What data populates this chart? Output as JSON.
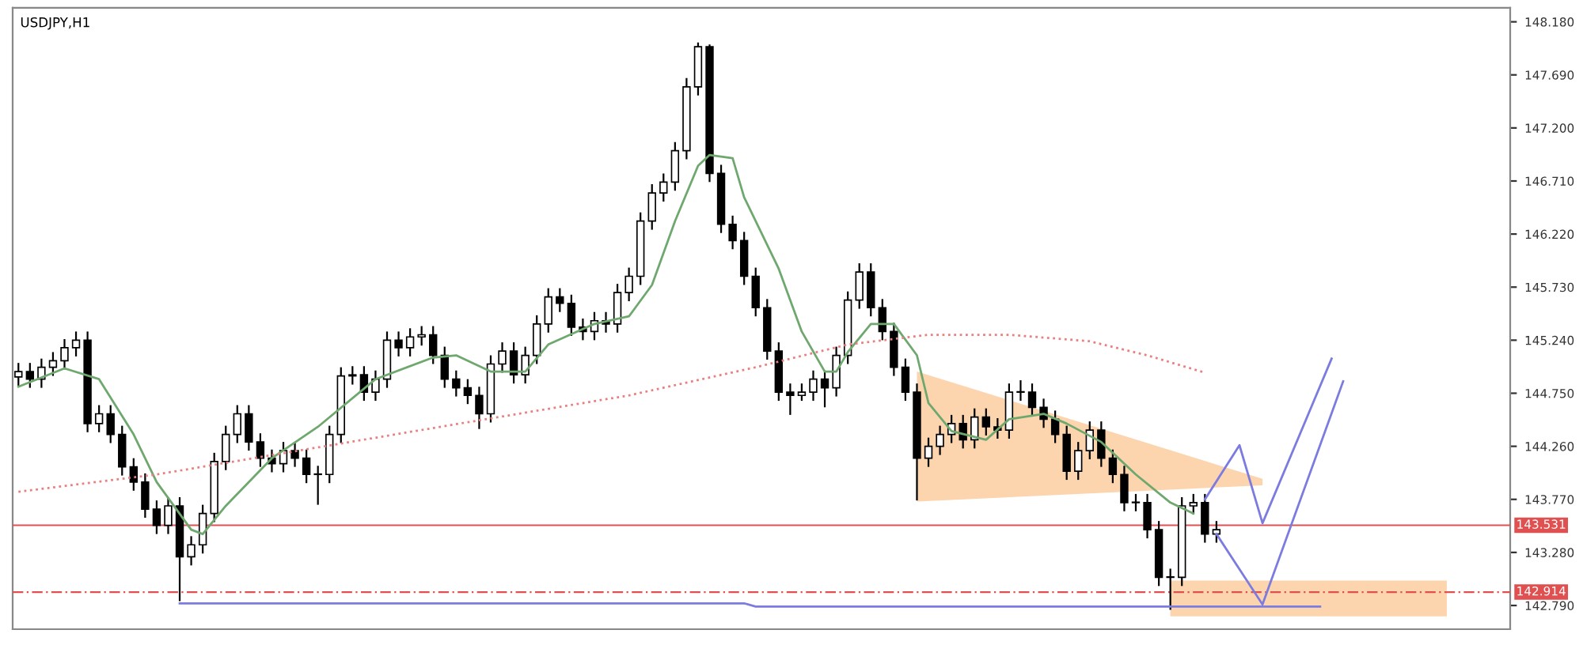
{
  "chart_data": {
    "type": "candlestick",
    "title": "USDJPY,H1",
    "categories": [
      null,
      null,
      null,
      null,
      null,
      null,
      null,
      null,
      null,
      null,
      null,
      null,
      null,
      null,
      null,
      null,
      null,
      null,
      null,
      null,
      null,
      null,
      null,
      null,
      null,
      null,
      null,
      null,
      null,
      null,
      null,
      null,
      null,
      null,
      null,
      null,
      null,
      null,
      null,
      null,
      null,
      null,
      null,
      null,
      null,
      null,
      null,
      null,
      null,
      null,
      null,
      null,
      null,
      null,
      null,
      null,
      null,
      null,
      null,
      null,
      null,
      null,
      null,
      null,
      null,
      null,
      null,
      null,
      null,
      null,
      null,
      null,
      null,
      null,
      null,
      null,
      null,
      null,
      null,
      null,
      null,
      null,
      null,
      null,
      null,
      null,
      null,
      null,
      null,
      null,
      null,
      null,
      null,
      null,
      null,
      null,
      null,
      null,
      null,
      null,
      null,
      null,
      null,
      null,
      null,
      null,
      null,
      null,
      null,
      null,
      null,
      null,
      null,
      null,
      null,
      null,
      null,
      null,
      null,
      null,
      null,
      null,
      null,
      null,
      null,
      null,
      null,
      null,
      null,
      null
    ],
    "ohlc": [
      [
        144.9,
        145.03,
        144.82,
        144.95
      ],
      [
        144.95,
        145.03,
        144.8,
        144.88
      ],
      [
        144.88,
        145.07,
        144.8,
        144.99
      ],
      [
        144.99,
        145.13,
        144.91,
        145.05
      ],
      [
        145.05,
        145.25,
        144.97,
        145.17
      ],
      [
        145.17,
        145.32,
        145.09,
        145.24
      ],
      [
        145.24,
        145.32,
        144.39,
        144.47
      ],
      [
        144.47,
        144.64,
        144.39,
        144.56
      ],
      [
        144.56,
        144.64,
        144.29,
        144.37
      ],
      [
        144.37,
        144.45,
        143.99,
        144.07
      ],
      [
        144.07,
        144.15,
        143.85,
        143.93
      ],
      [
        143.93,
        144.01,
        143.6,
        143.68
      ],
      [
        143.68,
        143.76,
        143.45,
        143.53
      ],
      [
        143.53,
        143.79,
        143.45,
        143.71
      ],
      [
        143.71,
        143.79,
        142.83,
        143.24
      ],
      [
        143.24,
        143.43,
        143.16,
        143.35
      ],
      [
        143.35,
        143.72,
        143.27,
        143.64
      ],
      [
        143.64,
        144.2,
        143.56,
        144.12
      ],
      [
        144.12,
        144.45,
        144.04,
        144.37
      ],
      [
        144.37,
        144.64,
        144.29,
        144.56
      ],
      [
        144.56,
        144.64,
        144.22,
        144.3
      ],
      [
        144.3,
        144.38,
        144.07,
        144.15
      ],
      [
        144.15,
        144.23,
        144.02,
        144.1
      ],
      [
        144.1,
        144.3,
        144.02,
        144.22
      ],
      [
        144.22,
        144.3,
        144.07,
        144.15
      ],
      [
        144.15,
        144.23,
        143.92,
        144.0
      ],
      [
        144.0,
        144.08,
        143.72,
        144.0
      ],
      [
        144.0,
        144.45,
        143.92,
        144.37
      ],
      [
        144.37,
        144.99,
        144.29,
        144.91
      ],
      [
        144.91,
        145.0,
        144.83,
        144.92
      ],
      [
        144.92,
        145.0,
        144.68,
        144.76
      ],
      [
        144.76,
        144.96,
        144.68,
        144.88
      ],
      [
        144.88,
        145.32,
        144.8,
        145.24
      ],
      [
        145.24,
        145.32,
        145.09,
        145.17
      ],
      [
        145.17,
        145.35,
        145.09,
        145.27
      ],
      [
        145.27,
        145.37,
        145.19,
        145.29
      ],
      [
        145.29,
        145.37,
        145.02,
        145.1
      ],
      [
        145.1,
        145.18,
        144.8,
        144.88
      ],
      [
        144.88,
        144.96,
        144.72,
        144.8
      ],
      [
        144.8,
        144.88,
        144.65,
        144.73
      ],
      [
        144.73,
        144.81,
        144.42,
        144.56
      ],
      [
        144.56,
        145.1,
        144.48,
        145.02
      ],
      [
        145.02,
        145.22,
        144.94,
        145.14
      ],
      [
        145.14,
        145.22,
        144.84,
        144.92
      ],
      [
        144.92,
        145.18,
        144.84,
        145.1
      ],
      [
        145.1,
        145.47,
        145.02,
        145.39
      ],
      [
        145.39,
        145.72,
        145.31,
        145.64
      ],
      [
        145.64,
        145.72,
        145.5,
        145.58
      ],
      [
        145.58,
        145.66,
        145.28,
        145.36
      ],
      [
        145.36,
        145.44,
        145.24,
        145.32
      ],
      [
        145.32,
        145.5,
        145.24,
        145.42
      ],
      [
        145.42,
        145.5,
        145.31,
        145.39
      ],
      [
        145.39,
        145.76,
        145.31,
        145.68
      ],
      [
        145.68,
        145.91,
        145.6,
        145.83
      ],
      [
        145.83,
        146.42,
        145.75,
        146.34
      ],
      [
        146.34,
        146.68,
        146.26,
        146.6
      ],
      [
        146.6,
        146.78,
        146.52,
        146.7
      ],
      [
        146.7,
        147.07,
        146.62,
        146.99
      ],
      [
        146.99,
        147.66,
        146.91,
        147.58
      ],
      [
        147.58,
        147.99,
        147.5,
        147.95
      ],
      [
        147.95,
        147.97,
        146.7,
        146.78
      ],
      [
        146.78,
        146.86,
        146.23,
        146.31
      ],
      [
        146.31,
        146.39,
        146.08,
        146.16
      ],
      [
        146.16,
        146.24,
        145.75,
        145.83
      ],
      [
        145.83,
        145.91,
        145.46,
        145.54
      ],
      [
        145.54,
        145.62,
        145.06,
        145.14
      ],
      [
        145.14,
        145.22,
        144.68,
        144.76
      ],
      [
        144.76,
        144.84,
        144.55,
        144.73
      ],
      [
        144.73,
        144.84,
        144.68,
        144.76
      ],
      [
        144.76,
        144.96,
        144.68,
        144.88
      ],
      [
        144.88,
        144.96,
        144.62,
        144.8
      ],
      [
        144.8,
        145.18,
        144.72,
        145.1
      ],
      [
        145.1,
        145.69,
        145.02,
        145.61
      ],
      [
        145.61,
        145.95,
        145.53,
        145.87
      ],
      [
        145.87,
        145.95,
        145.46,
        145.54
      ],
      [
        145.54,
        145.62,
        145.24,
        145.32
      ],
      [
        145.32,
        145.4,
        144.91,
        144.99
      ],
      [
        144.99,
        145.07,
        144.68,
        144.76
      ],
      [
        144.76,
        144.84,
        143.76,
        144.15
      ],
      [
        144.15,
        144.34,
        144.07,
        144.26
      ],
      [
        144.26,
        144.45,
        144.18,
        144.37
      ],
      [
        144.37,
        144.55,
        144.29,
        144.47
      ],
      [
        144.47,
        144.55,
        144.24,
        144.32
      ],
      [
        144.32,
        144.61,
        144.24,
        144.53
      ],
      [
        144.53,
        144.61,
        144.36,
        144.44
      ],
      [
        144.44,
        144.52,
        144.33,
        144.41
      ],
      [
        144.41,
        144.84,
        144.33,
        144.76
      ],
      [
        144.76,
        144.87,
        144.68,
        144.76
      ],
      [
        144.76,
        144.84,
        144.54,
        144.62
      ],
      [
        144.62,
        144.7,
        144.43,
        144.51
      ],
      [
        144.51,
        144.59,
        144.29,
        144.37
      ],
      [
        144.37,
        144.45,
        143.95,
        144.03
      ],
      [
        144.03,
        144.3,
        143.95,
        144.22
      ],
      [
        144.22,
        144.49,
        144.14,
        144.41
      ],
      [
        144.41,
        144.49,
        144.07,
        144.15
      ],
      [
        144.15,
        144.23,
        143.92,
        144.0
      ],
      [
        144.0,
        144.08,
        143.66,
        143.74
      ],
      [
        143.74,
        143.82,
        143.66,
        143.74
      ],
      [
        143.74,
        143.82,
        143.41,
        143.49
      ],
      [
        143.49,
        143.57,
        142.97,
        143.05
      ],
      [
        143.05,
        143.13,
        142.75,
        143.05
      ],
      [
        143.05,
        143.79,
        142.97,
        143.71
      ],
      [
        143.71,
        143.82,
        143.63,
        143.74
      ],
      [
        143.74,
        143.82,
        143.37,
        143.45
      ],
      [
        143.45,
        143.57,
        143.37,
        143.49
      ],
      null,
      null,
      null,
      null,
      null,
      null,
      null,
      null,
      null,
      null,
      null,
      null,
      null,
      null,
      null,
      null,
      null,
      null,
      null,
      null,
      null,
      null,
      null,
      null,
      null
    ],
    "series": [
      {
        "type": "line",
        "color": "#fcd5ae",
        "values": [
          null,
          null,
          null,
          null,
          null,
          null,
          null,
          null,
          null,
          null,
          null,
          null,
          null,
          null,
          null,
          null,
          null,
          null,
          null,
          null,
          null,
          null,
          null,
          null,
          null,
          null,
          null,
          null,
          null,
          null,
          null,
          null,
          null,
          null,
          null,
          null,
          null,
          null,
          null,
          null,
          null,
          null,
          null,
          null,
          null,
          null,
          null,
          null,
          null,
          null,
          null,
          null,
          null,
          null,
          null,
          null,
          null,
          null,
          null,
          null,
          null,
          null,
          null,
          null,
          null,
          null,
          null,
          null,
          null,
          null,
          null,
          null,
          null,
          null,
          null,
          null,
          null,
          null,
          null,
          null,
          null,
          null,
          null,
          null,
          null,
          null,
          null,
          null,
          null,
          null,
          null,
          null,
          null,
          null,
          null,
          null,
          null,
          null,
          null,
          null,
          null,
          null,
          null,
          null,
          null,
          null,
          null,
          null,
          null,
          null,
          null,
          null,
          null,
          null,
          null,
          null,
          null,
          null,
          null,
          null,
          null,
          null,
          null,
          null,
          null,
          null,
          null,
          null,
          null,
          null
        ],
        "upper": [
          null,
          null,
          null,
          null,
          null,
          null,
          null,
          null,
          null,
          null,
          null,
          null,
          null,
          null,
          null,
          null,
          null,
          null,
          null,
          null,
          null,
          null,
          null,
          null,
          null,
          null,
          null,
          null,
          null,
          null,
          null,
          null,
          null,
          null,
          null,
          null,
          null,
          null,
          null,
          null,
          null,
          null,
          null,
          null,
          null,
          null,
          null,
          null,
          null,
          null,
          null,
          null,
          null,
          null,
          null,
          null,
          null,
          null,
          null,
          null,
          null,
          null,
          null,
          null,
          null,
          null,
          null,
          null,
          null,
          null,
          null,
          null,
          null,
          null,
          null,
          null,
          null,
          null,
          144.95,
          null,
          null,
          null,
          null,
          null,
          null,
          null,
          null,
          null,
          null,
          null,
          null,
          null,
          null,
          null,
          null,
          null,
          null,
          null,
          null,
          null,
          null,
          null,
          null,
          null,
          null,
          null,
          null,
          null,
          143.96,
          null,
          null,
          null,
          null,
          null,
          null,
          null,
          null,
          null,
          null,
          null,
          null,
          null,
          null,
          null,
          null,
          null,
          null,
          null,
          null,
          null
        ],
        "lower": [
          null,
          null,
          null,
          null,
          null,
          null,
          null,
          null,
          null,
          null,
          null,
          null,
          null,
          null,
          null,
          null,
          null,
          null,
          null,
          null,
          null,
          null,
          null,
          null,
          null,
          null,
          null,
          null,
          null,
          null,
          null,
          null,
          null,
          null,
          null,
          null,
          null,
          null,
          null,
          null,
          null,
          null,
          null,
          null,
          null,
          null,
          null,
          null,
          null,
          null,
          null,
          null,
          null,
          null,
          null,
          null,
          null,
          null,
          null,
          null,
          null,
          null,
          null,
          null,
          null,
          null,
          null,
          null,
          null,
          null,
          null,
          null,
          null,
          null,
          null,
          null,
          null,
          null,
          143.75,
          null,
          null,
          null,
          null,
          null,
          null,
          null,
          null,
          null,
          null,
          null,
          null,
          null,
          null,
          null,
          null,
          null,
          null,
          null,
          null,
          null,
          null,
          null,
          null,
          null,
          null,
          null,
          null,
          null,
          143.9,
          null,
          null,
          null,
          null,
          null,
          null,
          null,
          null,
          null,
          null,
          null,
          null,
          null,
          null,
          null,
          null,
          null,
          null,
          null,
          null,
          null
        ]
      },
      {
        "type": "line",
        "color": "#fcd5ae",
        "values": [
          null,
          null,
          null,
          null,
          null,
          null,
          null,
          null,
          null,
          null,
          null,
          null,
          null,
          null,
          null,
          null,
          null,
          null,
          null,
          null,
          null,
          null,
          null,
          null,
          null,
          null,
          null,
          null,
          null,
          null,
          null,
          null,
          null,
          null,
          null,
          null,
          null,
          null,
          null,
          null,
          null,
          null,
          null,
          null,
          null,
          null,
          null,
          null,
          null,
          null,
          null,
          null,
          null,
          null,
          null,
          null,
          null,
          null,
          null,
          null,
          null,
          null,
          null,
          null,
          null,
          null,
          null,
          null,
          null,
          null,
          null,
          null,
          null,
          null,
          null,
          null,
          null,
          null,
          null,
          null,
          null,
          null,
          null,
          null,
          null,
          null,
          null,
          null,
          null,
          null,
          null,
          null,
          null,
          null,
          null,
          null,
          null,
          null,
          null,
          null,
          null,
          null,
          null,
          null,
          null,
          null,
          null,
          null,
          null,
          null,
          null,
          null,
          null,
          null,
          null,
          null,
          null,
          null,
          null,
          null,
          null,
          null,
          null,
          null,
          null,
          null,
          null,
          null,
          null,
          null
        ],
        "upper": [
          null,
          null,
          null,
          null,
          null,
          null,
          null,
          null,
          null,
          null,
          null,
          null,
          null,
          null,
          null,
          null,
          null,
          null,
          null,
          null,
          null,
          null,
          null,
          null,
          null,
          null,
          null,
          null,
          null,
          null,
          null,
          null,
          null,
          null,
          null,
          null,
          null,
          null,
          null,
          null,
          null,
          null,
          null,
          null,
          null,
          null,
          null,
          null,
          null,
          null,
          null,
          null,
          null,
          null,
          null,
          null,
          null,
          null,
          null,
          null,
          null,
          null,
          null,
          null,
          null,
          null,
          null,
          null,
          null,
          null,
          null,
          null,
          null,
          null,
          null,
          null,
          null,
          null,
          null,
          null,
          null,
          null,
          null,
          null,
          null,
          null,
          null,
          null,
          null,
          null,
          null,
          null,
          null,
          null,
          null,
          null,
          null,
          null,
          null,
          null,
          143.02,
          null,
          null,
          null,
          null,
          null,
          null,
          null,
          null,
          null,
          null,
          null,
          null,
          null,
          null,
          null,
          null,
          null,
          null,
          null,
          null,
          null,
          null,
          null,
          143.02,
          null,
          null,
          null,
          null,
          null
        ],
        "lower": [
          null,
          null,
          null,
          null,
          null,
          null,
          null,
          null,
          null,
          null,
          null,
          null,
          null,
          null,
          null,
          null,
          null,
          null,
          null,
          null,
          null,
          null,
          null,
          null,
          null,
          null,
          null,
          null,
          null,
          null,
          null,
          null,
          null,
          null,
          null,
          null,
          null,
          null,
          null,
          null,
          null,
          null,
          null,
          null,
          null,
          null,
          null,
          null,
          null,
          null,
          null,
          null,
          null,
          null,
          null,
          null,
          null,
          null,
          null,
          null,
          null,
          null,
          null,
          null,
          null,
          null,
          null,
          null,
          null,
          null,
          null,
          null,
          null,
          null,
          null,
          null,
          null,
          null,
          null,
          null,
          null,
          null,
          null,
          null,
          null,
          null,
          null,
          null,
          null,
          null,
          null,
          null,
          null,
          null,
          null,
          null,
          null,
          null,
          null,
          null,
          142.69,
          null,
          null,
          null,
          null,
          null,
          null,
          null,
          null,
          null,
          null,
          null,
          null,
          null,
          null,
          null,
          null,
          null,
          null,
          null,
          null,
          null,
          null,
          null,
          142.69,
          null,
          null,
          null,
          null,
          null
        ]
      },
      {
        "type": "line",
        "color": "#6fa86f",
        "line_style": "solid",
        "values": [
          144.81,
          null,
          null,
          null,
          144.98,
          null,
          null,
          144.88,
          null,
          null,
          144.37,
          null,
          143.93,
          null,
          null,
          143.49,
          143.45,
          null,
          143.71,
          null,
          null,
          null,
          144.15,
          null,
          null,
          null,
          144.44,
          null,
          null,
          null,
          null,
          144.88,
          null,
          null,
          null,
          null,
          145.08,
          null,
          145.1,
          null,
          null,
          144.95,
          null,
          null,
          144.95,
          null,
          145.2,
          null,
          null,
          null,
          145.39,
          null,
          null,
          145.46,
          null,
          145.75,
          null,
          146.34,
          null,
          146.85,
          146.95,
          null,
          146.92,
          146.56,
          null,
          null,
          145.9,
          null,
          145.32,
          null,
          144.95,
          144.95,
          145.13,
          null,
          145.39,
          null,
          145.39,
          null,
          145.1,
          144.66,
          null,
          144.4,
          null,
          null,
          144.32,
          null,
          144.51,
          null,
          null,
          144.56,
          null,
          144.47,
          null,
          null,
          144.3,
          null,
          null,
          144.0,
          null,
          null,
          143.74,
          null,
          143.64,
          null,
          null,
          null,
          null,
          null,
          null,
          null,
          null,
          null,
          null,
          null,
          null,
          null,
          null,
          null,
          null,
          null,
          null,
          null,
          null,
          null,
          null,
          null,
          null,
          null,
          null,
          null
        ]
      },
      {
        "type": "line",
        "color": "#e88080",
        "line_style": "dotted",
        "values": [
          143.84,
          null,
          null,
          null,
          null,
          null,
          null,
          null,
          null,
          null,
          null,
          null,
          144.0,
          null,
          null,
          null,
          null,
          null,
          null,
          null,
          null,
          null,
          null,
          null,
          null,
          null,
          144.25,
          null,
          null,
          null,
          null,
          null,
          null,
          null,
          null,
          null,
          null,
          null,
          null,
          null,
          144.5,
          null,
          null,
          null,
          null,
          null,
          null,
          null,
          null,
          null,
          null,
          null,
          null,
          144.73,
          null,
          null,
          null,
          null,
          null,
          null,
          null,
          null,
          null,
          null,
          144.99,
          null,
          null,
          null,
          null,
          null,
          null,
          null,
          145.2,
          null,
          null,
          null,
          null,
          null,
          null,
          145.29,
          null,
          null,
          null,
          null,
          null,
          null,
          145.29,
          null,
          null,
          null,
          null,
          null,
          null,
          145.23,
          null,
          null,
          null,
          null,
          145.1,
          null,
          null,
          null,
          null,
          144.94,
          null,
          null,
          null,
          null,
          null,
          null,
          null,
          null,
          null,
          null,
          null,
          null,
          null,
          null,
          null,
          null,
          null,
          null,
          null,
          null,
          null,
          null,
          null,
          null,
          null,
          null
        ]
      },
      {
        "type": "line",
        "color": "#7b7be0",
        "line_style": "solid",
        "values": [
          null,
          null,
          null,
          null,
          null,
          null,
          null,
          null,
          null,
          null,
          null,
          null,
          null,
          null,
          142.81,
          null,
          null,
          null,
          null,
          null,
          null,
          null,
          null,
          null,
          null,
          null,
          null,
          null,
          null,
          null,
          null,
          null,
          null,
          null,
          null,
          null,
          null,
          null,
          null,
          null,
          null,
          null,
          null,
          null,
          null,
          null,
          null,
          null,
          null,
          null,
          null,
          null,
          null,
          null,
          null,
          null,
          null,
          null,
          null,
          null,
          null,
          null,
          null,
          142.81,
          142.78,
          null,
          null,
          null,
          null,
          null,
          null,
          null,
          null,
          null,
          null,
          null,
          null,
          null,
          null,
          null,
          null,
          null,
          null,
          null,
          null,
          null,
          null,
          null,
          null,
          null,
          null,
          null,
          null,
          null,
          null,
          null,
          null,
          null,
          null,
          null,
          null,
          null,
          null,
          null,
          null,
          null,
          null,
          null,
          null,
          null,
          null,
          null,
          null,
          142.78,
          null,
          null,
          null,
          null,
          null,
          null,
          null,
          null,
          null,
          null,
          null,
          null,
          null,
          null,
          null,
          null
        ]
      },
      {
        "type": "line",
        "color": "#7b7be0",
        "line_style": "solid",
        "values": [
          null,
          null,
          null,
          null,
          null,
          null,
          null,
          null,
          null,
          null,
          null,
          null,
          null,
          null,
          null,
          null,
          null,
          null,
          null,
          null,
          null,
          null,
          null,
          null,
          null,
          null,
          null,
          null,
          null,
          null,
          null,
          null,
          null,
          null,
          null,
          null,
          null,
          null,
          null,
          null,
          null,
          null,
          null,
          null,
          null,
          null,
          null,
          null,
          null,
          null,
          null,
          null,
          null,
          null,
          null,
          null,
          null,
          null,
          null,
          null,
          null,
          null,
          null,
          null,
          null,
          null,
          null,
          null,
          null,
          null,
          null,
          null,
          null,
          null,
          null,
          null,
          null,
          null,
          null,
          null,
          null,
          null,
          null,
          null,
          null,
          null,
          null,
          null,
          null,
          null,
          null,
          null,
          null,
          null,
          null,
          null,
          null,
          null,
          null,
          null,
          null,
          null,
          null,
          143.77,
          null,
          null,
          144.27,
          null,
          143.55,
          null,
          null,
          null,
          null,
          null,
          145.07,
          null,
          null,
          null,
          null,
          null,
          null,
          null,
          null,
          null,
          null,
          null,
          null,
          null,
          null,
          null
        ]
      },
      {
        "type": "line",
        "color": "#7b7be0",
        "line_style": "solid",
        "values": [
          null,
          null,
          null,
          null,
          null,
          null,
          null,
          null,
          null,
          null,
          null,
          null,
          null,
          null,
          null,
          null,
          null,
          null,
          null,
          null,
          null,
          null,
          null,
          null,
          null,
          null,
          null,
          null,
          null,
          null,
          null,
          null,
          null,
          null,
          null,
          null,
          null,
          null,
          null,
          null,
          null,
          null,
          null,
          null,
          null,
          null,
          null,
          null,
          null,
          null,
          null,
          null,
          null,
          null,
          null,
          null,
          null,
          null,
          null,
          null,
          null,
          null,
          null,
          null,
          null,
          null,
          null,
          null,
          null,
          null,
          null,
          null,
          null,
          null,
          null,
          null,
          null,
          null,
          null,
          null,
          null,
          null,
          null,
          null,
          null,
          null,
          null,
          null,
          null,
          null,
          null,
          null,
          null,
          null,
          null,
          null,
          null,
          null,
          null,
          null,
          null,
          null,
          null,
          null,
          143.45,
          null,
          null,
          null,
          142.8,
          null,
          null,
          null,
          null,
          null,
          null,
          144.86,
          null,
          null,
          null,
          null,
          null,
          null,
          null,
          null,
          null,
          null,
          null,
          null,
          null,
          null
        ]
      }
    ],
    "ref_lines": [
      {
        "axis": "y",
        "value": 143.531,
        "label": "143.531",
        "color": "#e05050",
        "line_style": "solid"
      },
      {
        "axis": "y",
        "value": 142.914,
        "label": "142.914",
        "color": "#e05050",
        "line_style": "dashed"
      }
    ],
    "ylim": [
      142.571,
      148.31
    ],
    "yticks": [
      {
        "value": 148.18,
        "label": "148.180"
      },
      {
        "value": 147.69,
        "label": "147.690"
      },
      {
        "value": 147.2,
        "label": "147.200"
      },
      {
        "value": 146.71,
        "label": "146.710"
      },
      {
        "value": 146.22,
        "label": "146.220"
      },
      {
        "value": 145.73,
        "label": "145.730"
      },
      {
        "value": 145.24,
        "label": "145.240"
      },
      {
        "value": 144.75,
        "label": "144.750"
      },
      {
        "value": 144.26,
        "label": "144.260"
      },
      {
        "value": 143.77,
        "label": "143.770"
      },
      {
        "value": 143.28,
        "label": "143.280"
      },
      {
        "value": 142.79,
        "label": "142.790"
      }
    ],
    "tick_labels": "y"
  }
}
